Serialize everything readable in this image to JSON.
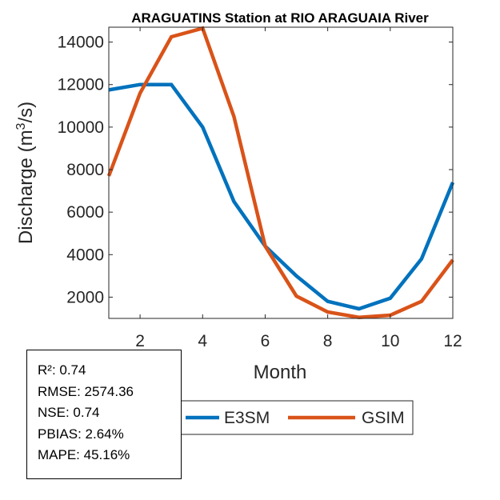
{
  "chart_data": {
    "type": "line",
    "title": "ARAGUATINS  Station at  RIO ARAGUAIA  River",
    "xlabel": "Month",
    "ylabel": "Discharge (m",
    "ylabel_sup": "3",
    "ylabel_tail": "/s)",
    "xlim": [
      1,
      12
    ],
    "ylim": [
      1000,
      14700
    ],
    "x": [
      1,
      2,
      3,
      4,
      5,
      6,
      7,
      8,
      9,
      10,
      11,
      12
    ],
    "xticks": [
      "2",
      "4",
      "6",
      "8",
      "10",
      "12"
    ],
    "yticks": [
      "2000",
      "4000",
      "6000",
      "8000",
      "10000",
      "12000",
      "14000"
    ],
    "series": [
      {
        "name": "E3SM",
        "color": "#0072BD",
        "values": [
          11750,
          12000,
          12000,
          10000,
          6500,
          4400,
          3000,
          1800,
          1450,
          1950,
          3800,
          7400
        ]
      },
      {
        "name": "GSIM",
        "color": "#D95319",
        "values": [
          7700,
          11600,
          14250,
          14650,
          10500,
          4400,
          2050,
          1300,
          1050,
          1150,
          1800,
          3750
        ]
      }
    ]
  },
  "stats": {
    "r2": "R²: 0.74",
    "rmse": "RMSE: 2574.36",
    "nse": "NSE: 0.74",
    "pbias": "PBIAS: 2.64%",
    "mape": "MAPE: 45.16%"
  }
}
